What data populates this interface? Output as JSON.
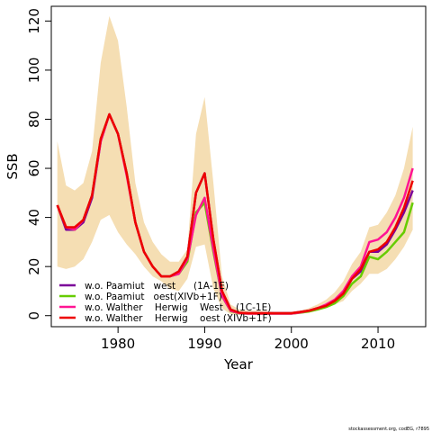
{
  "chart_data": {
    "type": "line",
    "xlabel": "Year",
    "ylabel": "SSB",
    "xlim": [
      1972.3,
      2015.5
    ],
    "ylim": [
      -4.5,
      126
    ],
    "xticks": [
      1980,
      1990,
      2000,
      2010
    ],
    "yticks": [
      0,
      20,
      40,
      60,
      80,
      100,
      120
    ],
    "xtick_labels": [
      "1980",
      "1990",
      "2000",
      "2010"
    ],
    "ytick_labels": [
      "0",
      "20",
      "40",
      "60",
      "80",
      "100",
      "120"
    ],
    "grid": false,
    "legend_position": "bottom-left",
    "x": [
      1973,
      1974,
      1975,
      1976,
      1977,
      1978,
      1979,
      1980,
      1981,
      1982,
      1983,
      1984,
      1985,
      1986,
      1987,
      1988,
      1989,
      1990,
      1991,
      1992,
      1993,
      1994,
      1995,
      1996,
      1997,
      1998,
      1999,
      2000,
      2001,
      2002,
      2003,
      2004,
      2005,
      2006,
      2007,
      2008,
      2009,
      2010,
      2011,
      2012,
      2013,
      2014
    ],
    "band": {
      "color": "#F5DEB3",
      "upper": [
        71,
        53,
        51,
        54,
        67,
        103,
        122,
        112,
        85,
        54,
        38,
        30,
        25,
        22,
        22,
        27,
        74,
        89,
        54,
        16,
        4.5,
        2.5,
        2,
        2,
        1.8,
        1.6,
        1.6,
        1.6,
        2,
        3,
        4.5,
        6.5,
        9.5,
        14,
        21,
        26,
        36,
        37,
        42,
        49,
        60,
        77
      ],
      "lower": [
        20,
        19,
        20,
        23,
        30,
        39,
        41,
        34,
        29,
        25,
        20,
        16,
        14,
        11,
        10,
        15,
        28,
        29,
        11,
        3,
        0.6,
        0.4,
        0.4,
        0.4,
        0.4,
        0.4,
        0.4,
        0.4,
        0.8,
        1.2,
        2,
        3,
        4.5,
        6,
        10,
        13,
        17,
        17,
        19,
        23,
        28,
        35
      ]
    },
    "series": [
      {
        "name": "w.o. Paamiut   west",
        "legend_extra": "(1A-1E)",
        "color": "#7B0099",
        "values": [
          45,
          35,
          35,
          38,
          48,
          71,
          82,
          74,
          58,
          38,
          26,
          20,
          16,
          16,
          18,
          24,
          50,
          58,
          31,
          10,
          2.5,
          1.2,
          1,
          1,
          1,
          1,
          1,
          1,
          1.5,
          2,
          3,
          4,
          6,
          9,
          15,
          18,
          26,
          26,
          29,
          35,
          42,
          51
        ]
      },
      {
        "name": "w.o. Paamiut   oest(XIVb+1F)",
        "legend_extra": "",
        "color": "#66CC00",
        "values": [
          45,
          36,
          35,
          39,
          49,
          72,
          82,
          74,
          58,
          38,
          26,
          20,
          16,
          16,
          17,
          22,
          42,
          46,
          26,
          8,
          1.8,
          0.9,
          0.8,
          0.8,
          0.8,
          0.8,
          0.8,
          0.8,
          1.2,
          1.7,
          2.5,
          3.5,
          5,
          8,
          13,
          16,
          24,
          23,
          26,
          30,
          34,
          46
        ]
      },
      {
        "name": "w.o. Walther    Herwig    West",
        "legend_extra": "(1C-1E)",
        "color": "#FF1493",
        "values": [
          45,
          36,
          35,
          39,
          49,
          71,
          82,
          74,
          57,
          38,
          26,
          20,
          16,
          16,
          17,
          23,
          41,
          48,
          27,
          8,
          2,
          1,
          0.8,
          0.8,
          0.8,
          0.8,
          0.8,
          0.8,
          1.3,
          2,
          3,
          4.5,
          6.5,
          10,
          16,
          20,
          30,
          31,
          34,
          40,
          48,
          60
        ]
      },
      {
        "name": "w.o. Walther    Herwig    oest (XIVb+1F)",
        "legend_extra": "",
        "color": "#EE0000",
        "values": [
          45,
          36,
          36,
          39,
          49,
          72,
          82,
          74,
          58,
          38,
          26,
          20,
          16,
          16,
          18,
          24,
          50,
          58,
          31,
          10,
          2.5,
          1.2,
          1,
          1,
          1,
          1,
          1,
          1,
          1.5,
          2,
          3,
          4,
          6,
          9,
          15,
          19,
          26,
          27,
          30,
          36,
          44,
          55
        ]
      }
    ],
    "credit": "stockassessment.org, codEG, r7895"
  }
}
